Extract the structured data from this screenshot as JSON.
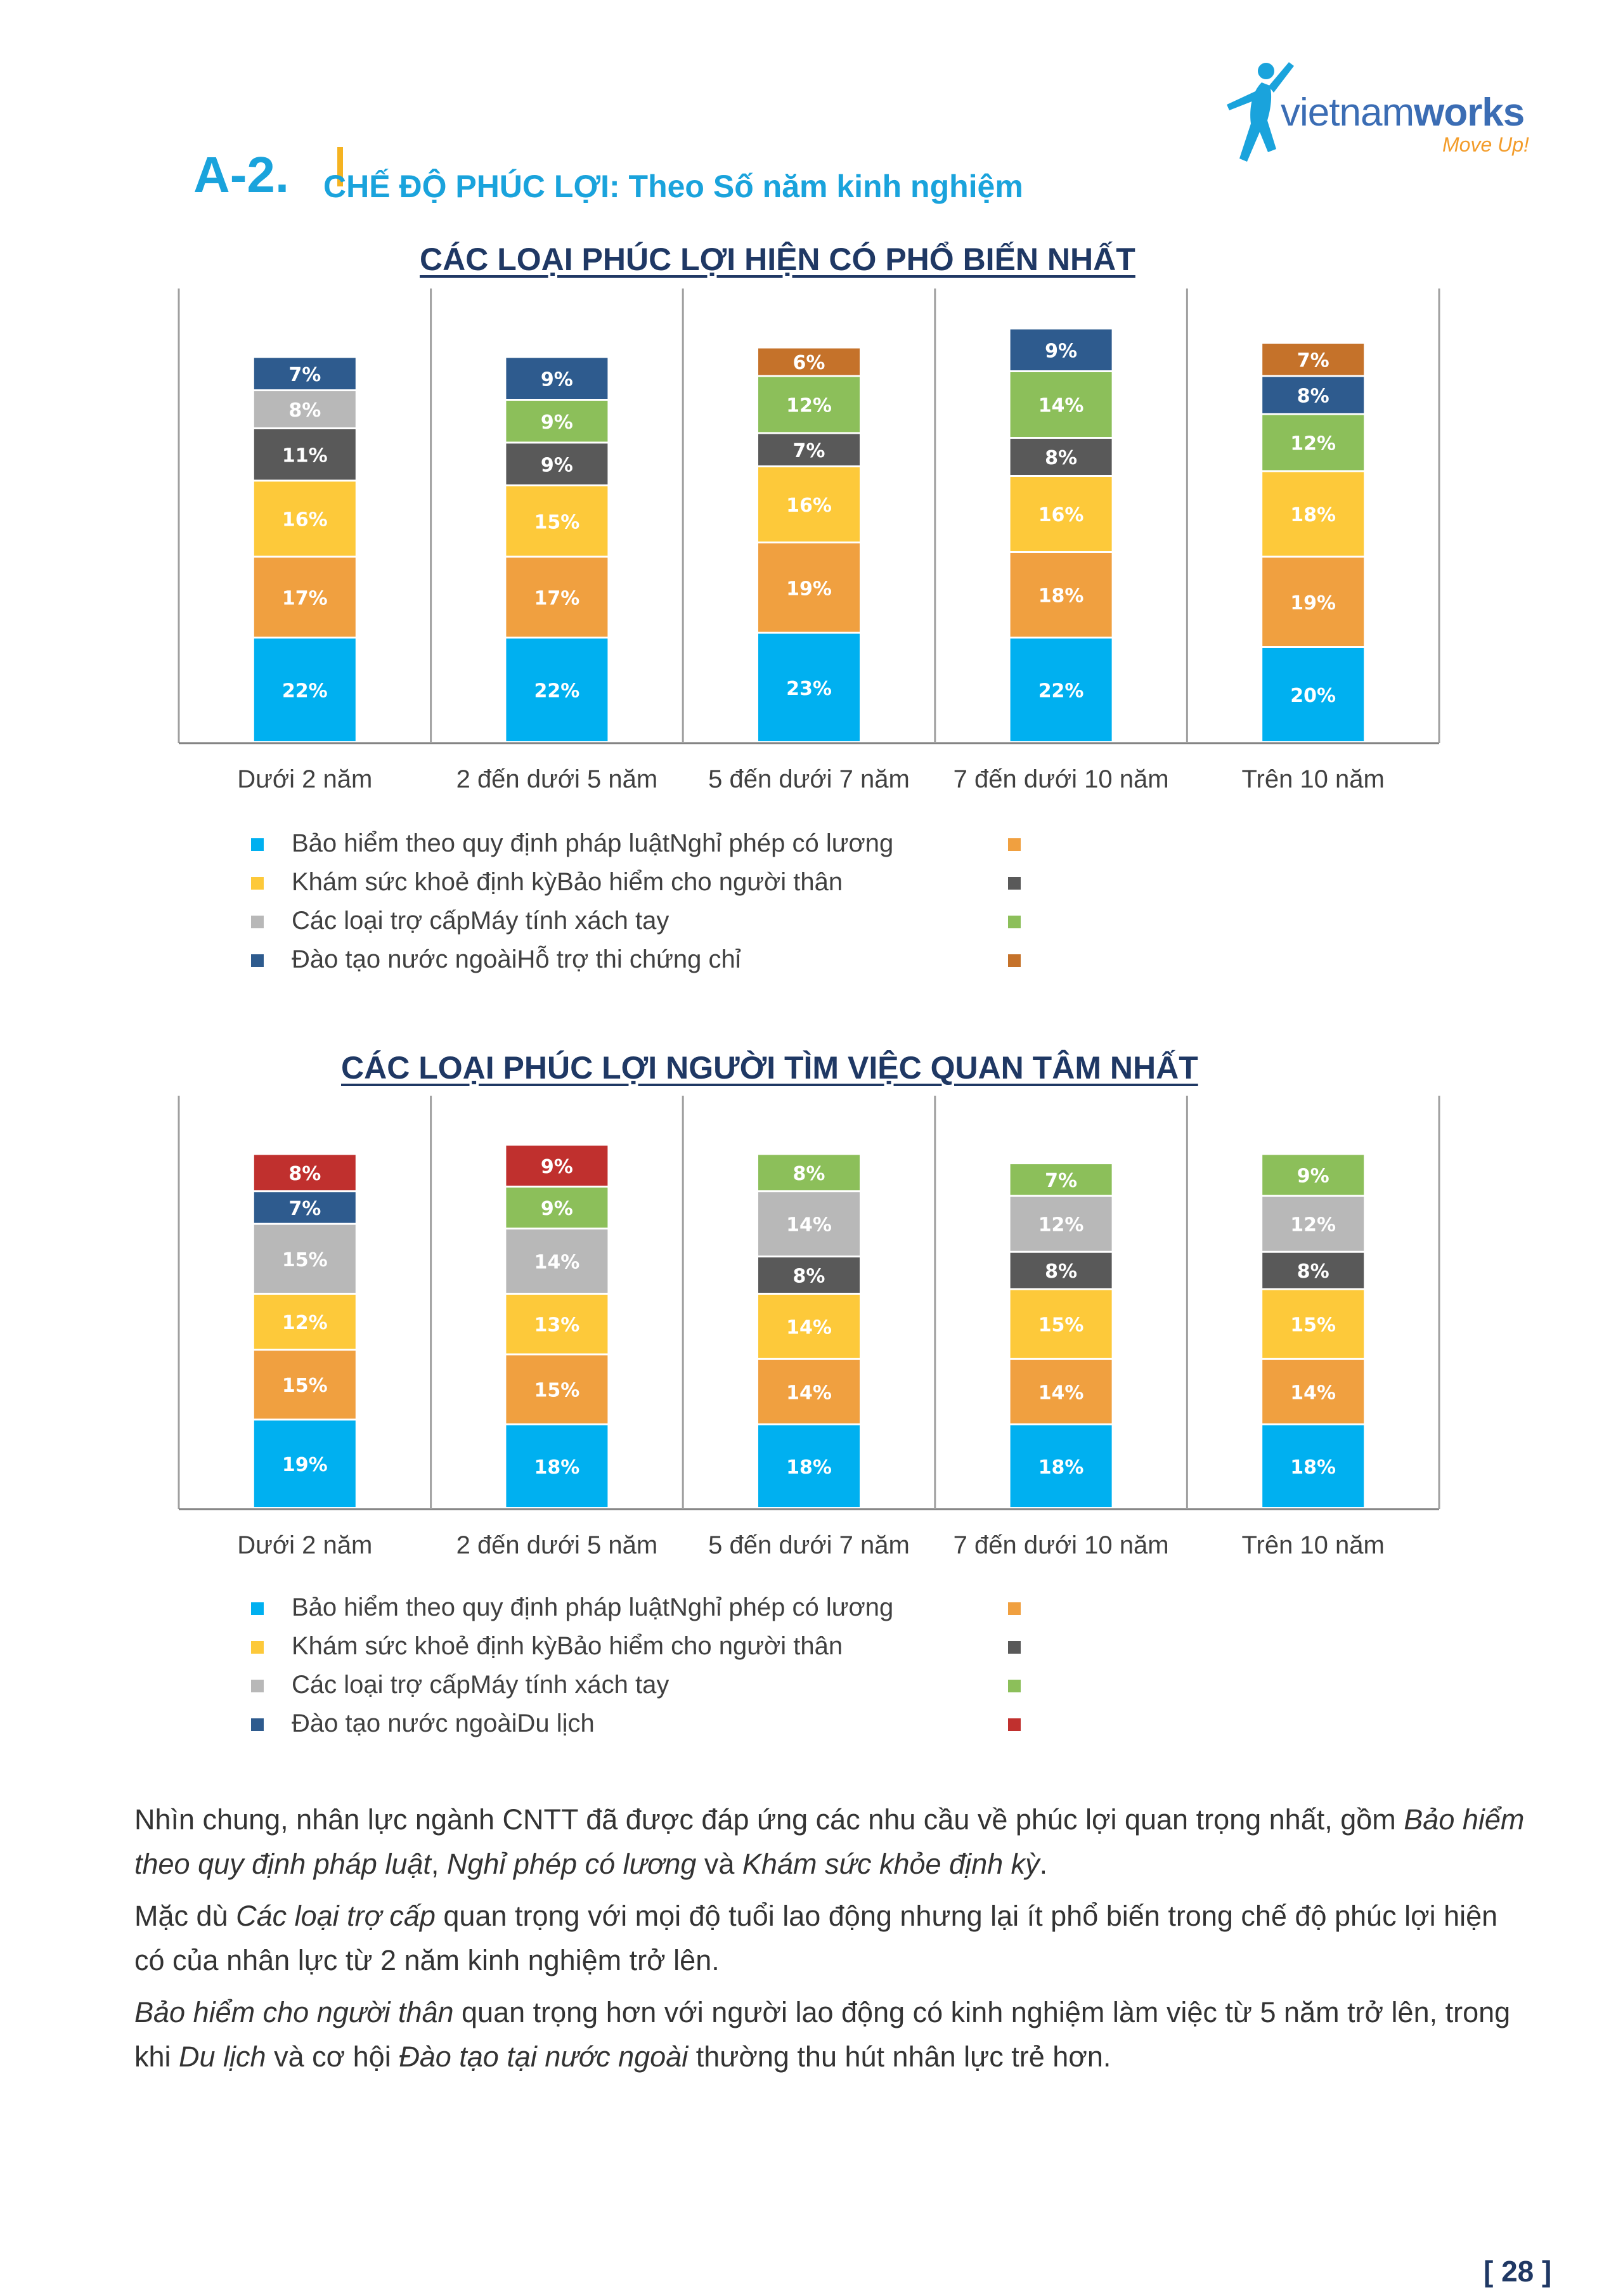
{
  "brand": {
    "name_regular": "vietnam",
    "name_bold": "works",
    "tagline": "Move Up!"
  },
  "section": {
    "number": "A-2.",
    "title": "CHẾ ĐỘ PHÚC LỢI: Theo Số năm kinh nghiệm"
  },
  "colors": {
    "blue": "#00b0f0",
    "orange": "#f0a040",
    "yellow": "#fdc93a",
    "darkgray": "#595959",
    "gray": "#b8b8b8",
    "green": "#8cbf5a",
    "navy": "#2e5b8e",
    "brown": "#c5722a",
    "red": "#c0302e"
  },
  "chart_data": [
    {
      "type": "bar",
      "stacked": true,
      "title": "CÁC LOẠI PHÚC LỢI HIỆN CÓ PHỔ BIẾN NHẤT",
      "categories": [
        "Dưới 2 năm",
        "2 đến dưới 5 năm",
        "5 đến dưới 7 năm",
        "7 đến dưới 10 năm",
        "Trên 10 năm"
      ],
      "series": [
        {
          "name": "Bảo hiểm theo quy định pháp luật",
          "color": "#00b0f0",
          "values": [
            22,
            22,
            23,
            22,
            20
          ]
        },
        {
          "name": "Nghỉ phép có lương",
          "color": "#f0a040",
          "values": [
            17,
            17,
            19,
            18,
            19
          ]
        },
        {
          "name": "Khám sức khoẻ định kỳ",
          "color": "#fdc93a",
          "values": [
            16,
            15,
            16,
            16,
            18
          ]
        },
        {
          "name": "Bảo hiểm cho người thân",
          "color": "#595959",
          "values": [
            11,
            9,
            7,
            8,
            null
          ]
        },
        {
          "name": "Các loại trợ cấp",
          "color": "#b8b8b8",
          "values": [
            8,
            null,
            null,
            null,
            null
          ]
        },
        {
          "name": "Máy tính xách tay",
          "color": "#8cbf5a",
          "values": [
            null,
            9,
            12,
            14,
            12
          ]
        },
        {
          "name": "Đào tạo nước ngoài",
          "color": "#2e5b8e",
          "values": [
            7,
            9,
            null,
            9,
            8
          ]
        },
        {
          "name": "Hỗ trợ thi chứng chỉ",
          "color": "#c5722a",
          "values": [
            null,
            null,
            6,
            null,
            7
          ]
        }
      ],
      "legend": [
        {
          "text": "Bảo hiểm theo quy định pháp luậtNghỉ phép có lương",
          "left": "#00b0f0",
          "right": "#f0a040"
        },
        {
          "text": "Khám sức khoẻ định kỳBảo hiểm cho người thân",
          "left": "#fdc93a",
          "right": "#595959"
        },
        {
          "text": "Các loại trợ cấpMáy tính xách tay",
          "left": "#b8b8b8",
          "right": "#8cbf5a"
        },
        {
          "text": "Đào tạo nước ngoàiHỗ trợ thi chứng chỉ",
          "left": "#2e5b8e",
          "right": "#c5722a"
        }
      ]
    },
    {
      "type": "bar",
      "stacked": true,
      "title": "CÁC LOẠI PHÚC LỢI NGƯỜI TÌM VIỆC QUAN TÂM NHẤT",
      "categories": [
        "Dưới 2 năm",
        "2 đến dưới 5 năm",
        "5 đến dưới 7 năm",
        "7 đến dưới 10 năm",
        "Trên 10 năm"
      ],
      "series": [
        {
          "name": "Bảo hiểm theo quy định pháp luật",
          "color": "#00b0f0",
          "values": [
            19,
            18,
            18,
            18,
            18
          ]
        },
        {
          "name": "Nghỉ phép có lương",
          "color": "#f0a040",
          "values": [
            15,
            15,
            14,
            14,
            14
          ]
        },
        {
          "name": "Khám sức khoẻ định kỳ",
          "color": "#fdc93a",
          "values": [
            12,
            13,
            14,
            15,
            15
          ]
        },
        {
          "name": "Bảo hiểm cho người thân",
          "color": "#595959",
          "values": [
            null,
            null,
            8,
            8,
            8
          ]
        },
        {
          "name": "Các loại trợ cấp",
          "color": "#b8b8b8",
          "values": [
            15,
            14,
            14,
            12,
            12
          ]
        },
        {
          "name": "Máy tính xách tay",
          "color": "#8cbf5a",
          "values": [
            null,
            9,
            8,
            7,
            9
          ]
        },
        {
          "name": "Đào tạo nước ngoài",
          "color": "#2e5b8e",
          "values": [
            7,
            null,
            null,
            null,
            null
          ]
        },
        {
          "name": "Du lịch",
          "color": "#c0302e",
          "values": [
            8,
            9,
            null,
            null,
            null
          ]
        }
      ],
      "legend": [
        {
          "text": "Bảo hiểm theo quy định pháp luậtNghỉ phép có lương",
          "left": "#00b0f0",
          "right": "#f0a040"
        },
        {
          "text": "Khám sức khoẻ định kỳBảo hiểm cho người thân",
          "left": "#fdc93a",
          "right": "#595959"
        },
        {
          "text": "Các loại trợ cấpMáy tính xách tay",
          "left": "#b8b8b8",
          "right": "#8cbf5a"
        },
        {
          "text": "Đào tạo nước ngoàiDu lịch",
          "left": "#2e5b8e",
          "right": "#c0302e"
        }
      ]
    }
  ],
  "paragraphs": [
    [
      {
        "t": "Nhìn chung, nhân lực ngành CNTT đã được đáp ứng các nhu cầu về phúc lợi quan trọng nhất, gồm "
      },
      {
        "t": "Bảo hiểm theo quy định pháp luật",
        "i": true
      },
      {
        "t": ", "
      },
      {
        "t": "Nghỉ phép có lương",
        "i": true
      },
      {
        "t": " và "
      },
      {
        "t": "Khám sức khỏe định kỳ",
        "i": true
      },
      {
        "t": "."
      }
    ],
    [
      {
        "t": "Mặc dù "
      },
      {
        "t": "Các loại trợ cấp",
        "i": true
      },
      {
        "t": " quan trọng với mọi độ tuổi lao động nhưng lại ít phổ biến trong chế độ phúc lợi hiện có của nhân lực từ 2 năm kinh nghiệm trở lên."
      }
    ],
    [
      {
        "t": "Bảo hiểm cho người thân",
        "i": true
      },
      {
        "t": " quan trọng hơn với người lao động có kinh nghiệm làm việc từ 5 năm trở lên, trong khi "
      },
      {
        "t": "Du lịch",
        "i": true
      },
      {
        "t": " và cơ hội "
      },
      {
        "t": "Đào tạo tại nước ngoài",
        "i": true
      },
      {
        "t": " thường thu hút nhân lực trẻ hơn."
      }
    ]
  ],
  "page_number": "[ 28 ]"
}
